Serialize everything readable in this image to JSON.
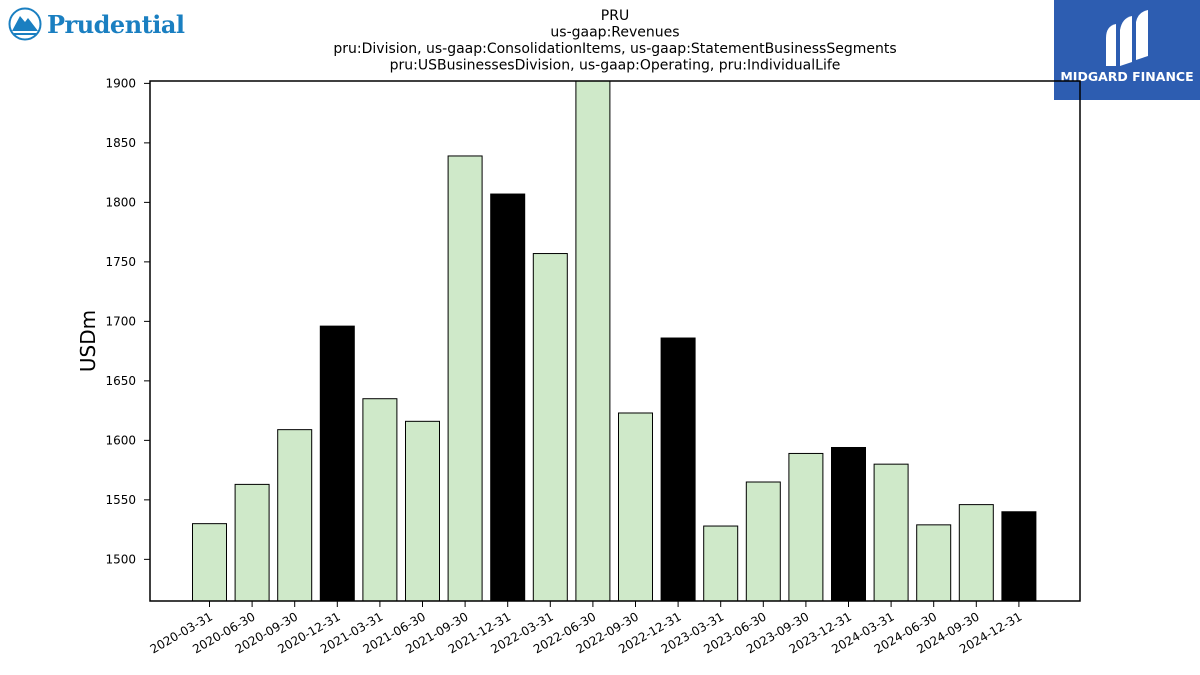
{
  "logos": {
    "left": {
      "text": "Prudential",
      "color": "#1a7fc1",
      "icon": "rock-logo-icon"
    },
    "right": {
      "text": "MIDGARD FINANCE",
      "background": "#2d5db1",
      "icon": "m-monogram-icon"
    }
  },
  "chart_data": {
    "type": "bar",
    "title": [
      "PRU",
      "us-gaap:Revenues",
      "pru:Division, us-gaap:ConsolidationItems, us-gaap:StatementBusinessSegments",
      "pru:USBusinessesDivision, us-gaap:Operating, pru:IndividualLife"
    ],
    "xlabel": "",
    "ylabel": "USDm",
    "ylim": [
      1465,
      1902
    ],
    "yticks": [
      1500,
      1550,
      1600,
      1650,
      1700,
      1750,
      1800,
      1850,
      1900
    ],
    "grid": false,
    "legend": "none",
    "colors": {
      "quarter": "#cfe9c9",
      "year_end": "#000000",
      "edge": "#000000"
    },
    "categories": [
      "2020-03-31",
      "2020-06-30",
      "2020-09-30",
      "2020-12-31",
      "2021-03-31",
      "2021-06-30",
      "2021-09-30",
      "2021-12-31",
      "2022-03-31",
      "2022-06-30",
      "2022-09-30",
      "2022-12-31",
      "2023-03-31",
      "2023-06-30",
      "2023-09-30",
      "2023-12-31",
      "2024-03-31",
      "2024-06-30",
      "2024-09-30",
      "2024-12-31"
    ],
    "values": [
      1530,
      1563,
      1609,
      1696,
      1635,
      1616,
      1839,
      1807,
      1757,
      1902,
      1623,
      1686,
      1528,
      1565,
      1589,
      1594,
      1580,
      1529,
      1546,
      1540
    ],
    "highlight": [
      false,
      false,
      false,
      true,
      false,
      false,
      false,
      true,
      false,
      false,
      false,
      true,
      false,
      false,
      false,
      true,
      false,
      false,
      false,
      true
    ]
  }
}
